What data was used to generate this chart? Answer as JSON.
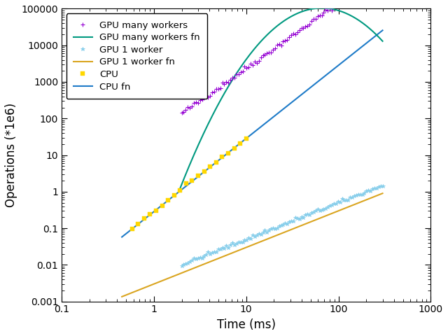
{
  "title": "",
  "xlabel": "Time (ms)",
  "ylabel": "Operations (*1e6)",
  "xlim": [
    0.1,
    1000
  ],
  "ylim": [
    0.001,
    100000
  ],
  "legend_labels": [
    "GPU many workers",
    "GPU many workers fn",
    "GPU 1 worker",
    "GPU 1 worker fn",
    "CPU",
    "CPU fn"
  ],
  "colors": {
    "gpu_many_workers": "#9400D3",
    "gpu_many_workers_fn": "#009980",
    "gpu_1_worker": "#87CEEB",
    "gpu_1_worker_fn": "#DAA520",
    "cpu": "#FFD700",
    "cpu_fn": "#1E7BC8"
  },
  "background": "#ffffff"
}
